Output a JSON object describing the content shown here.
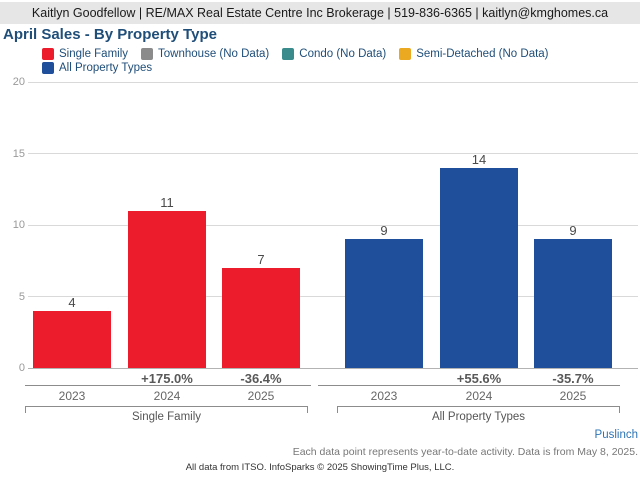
{
  "header": {
    "text": "Kaitlyn Goodfellow | RE/MAX Real Estate Centre Inc Brokerage | 519-836-6365 | kaitlyn@kmghomes.ca"
  },
  "title": "April Sales - By Property Type",
  "legend": {
    "items": [
      {
        "label": "Single Family",
        "color": "#EC1C2C"
      },
      {
        "label": "Townhouse (No Data)",
        "color": "#8B8B8B"
      },
      {
        "label": "Condo (No Data)",
        "color": "#3A8C8C"
      },
      {
        "label": "Semi-Detached (No Data)",
        "color": "#EBA821"
      },
      {
        "label": "All Property Types",
        "color": "#1F4E9B"
      }
    ]
  },
  "chart_data": {
    "type": "bar",
    "title": "April Sales - By Property Type",
    "categories": [
      "2023",
      "2024",
      "2025"
    ],
    "series": [
      {
        "name": "Single Family",
        "color": "#EC1C2C",
        "values": [
          4,
          11,
          7
        ],
        "pct_change": [
          null,
          "+175.0%",
          "-36.4%"
        ]
      },
      {
        "name": "All Property Types",
        "color": "#1F4E9B",
        "values": [
          9,
          14,
          9
        ],
        "pct_change": [
          null,
          "+55.6%",
          "-35.7%"
        ]
      }
    ],
    "no_data_series": [
      "Townhouse",
      "Condo",
      "Semi-Detached"
    ],
    "ylim": [
      0,
      20
    ],
    "yticks": [
      0,
      5,
      10,
      15,
      20
    ],
    "grid": true,
    "legend_position": "top"
  },
  "footer": {
    "region": "Puslinch",
    "note": "Each data point represents year-to-date activity. Data is from May 8, 2025.",
    "attribution": "All data from ITSO. InfoSparks © 2025 ShowingTime Plus, LLC."
  }
}
